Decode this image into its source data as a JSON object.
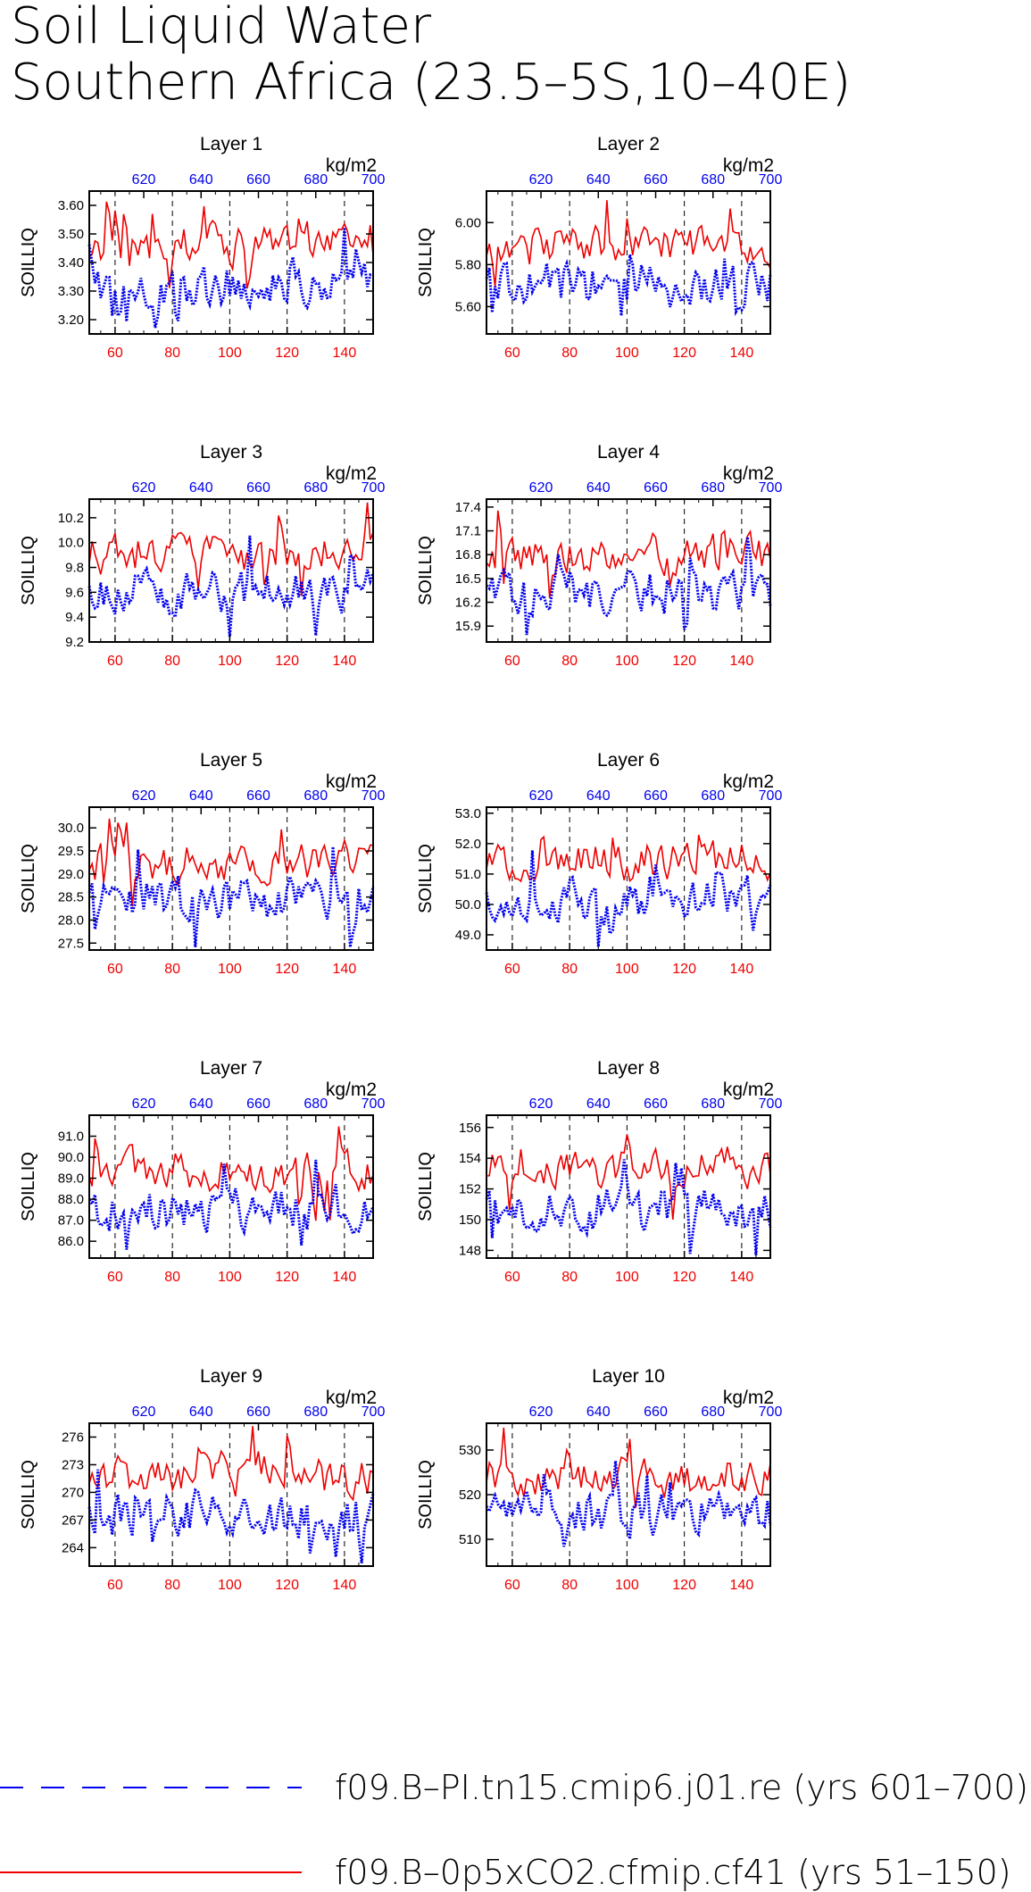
{
  "title": {
    "line1": "Soil Liquid Water",
    "line2": "Southern Africa (23.5–5S,10–40E)"
  },
  "units": "kg/m2",
  "ylabel": "SOILLIQ",
  "colors": {
    "blue": "#0000ee",
    "red": "#ee0000"
  },
  "legend": [
    {
      "label": "f09.B–PI.tn15.cmip6.j01.re (yrs 601–700)",
      "color": "#0000ee",
      "style": "dashed"
    },
    {
      "label": "f09.B–0p5xCO2.cfmip.cf41 (yrs 51–150)",
      "color": "#ee0000",
      "style": "solid"
    }
  ],
  "chart_data": [
    {
      "type": "line",
      "title": "Layer 1",
      "ylim": [
        3.15,
        3.65
      ],
      "yticks": [
        3.2,
        3.3,
        3.4,
        3.5,
        3.6
      ],
      "ydec": 2
    },
    {
      "type": "line",
      "title": "Layer 2",
      "ylim": [
        5.47,
        6.15
      ],
      "yticks": [
        5.6,
        5.8,
        6.0
      ],
      "ydec": 2
    },
    {
      "type": "line",
      "title": "Layer 3",
      "ylim": [
        9.2,
        10.35
      ],
      "yticks": [
        9.2,
        9.4,
        9.6,
        9.8,
        10.0,
        10.2
      ],
      "ydec": 1
    },
    {
      "type": "line",
      "title": "Layer 4",
      "ylim": [
        15.7,
        17.5
      ],
      "yticks": [
        15.9,
        16.2,
        16.5,
        16.8,
        17.1,
        17.4
      ],
      "ydec": 1
    },
    {
      "type": "line",
      "title": "Layer 5",
      "ylim": [
        27.35,
        30.45
      ],
      "yticks": [
        27.5,
        28.0,
        28.5,
        29.0,
        29.5,
        30.0
      ],
      "ydec": 1
    },
    {
      "type": "line",
      "title": "Layer 6",
      "ylim": [
        48.5,
        53.2
      ],
      "yticks": [
        49.0,
        50.0,
        51.0,
        52.0,
        53.0
      ],
      "ydec": 1
    },
    {
      "type": "line",
      "title": "Layer 7",
      "ylim": [
        85.2,
        92.0
      ],
      "yticks": [
        86.0,
        87.0,
        88.0,
        89.0,
        90.0,
        91.0
      ],
      "ydec": 1
    },
    {
      "type": "line",
      "title": "Layer 8",
      "ylim": [
        147.5,
        156.8
      ],
      "yticks": [
        148,
        150,
        152,
        154,
        156
      ],
      "ydec": 0
    },
    {
      "type": "line",
      "title": "Layer 9",
      "ylim": [
        262.0,
        277.5
      ],
      "yticks": [
        264,
        267,
        270,
        273,
        276
      ],
      "ydec": 0
    },
    {
      "type": "line",
      "title": "Layer 10",
      "ylim": [
        504,
        536
      ],
      "yticks": [
        510,
        520,
        530
      ],
      "ydec": 0
    }
  ],
  "x_bottom": {
    "range": [
      51,
      150
    ],
    "ticks": [
      60,
      80,
      100,
      120,
      140
    ]
  },
  "x_top": {
    "range": [
      601,
      700
    ],
    "ticks": [
      620,
      640,
      660,
      680,
      700
    ]
  }
}
